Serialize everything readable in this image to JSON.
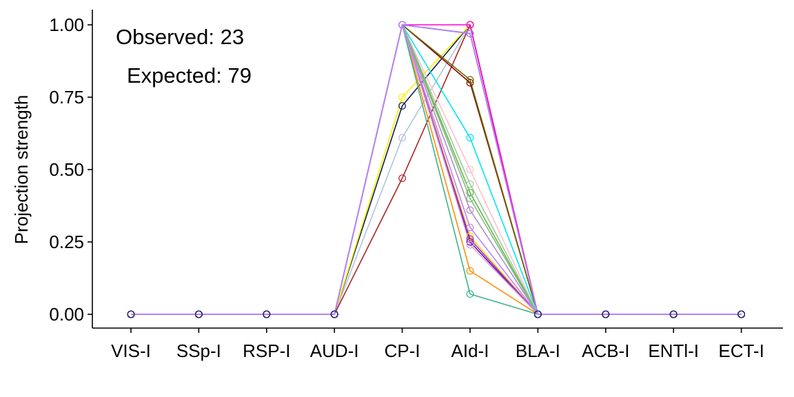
{
  "chart_data": {
    "type": "line",
    "title": "",
    "xlabel": "",
    "ylabel": "Projection strength",
    "ylim": [
      0,
      1
    ],
    "yticks": [
      "0.00",
      "0.25",
      "0.50",
      "0.75",
      "1.00"
    ],
    "categories": [
      "VIS-I",
      "SSp-I",
      "RSP-I",
      "AUD-I",
      "CP-I",
      "AId-I",
      "BLA-I",
      "ACB-I",
      "ENTl-I",
      "ECT-I"
    ],
    "grid": false,
    "legend": "none",
    "annotations": {
      "observed": "Observed: 23",
      "expected": "Expected: 79"
    },
    "series": [
      {
        "color": "#2b2b6f",
        "values": [
          0,
          0,
          0,
          0,
          1.0,
          0.97,
          0,
          0,
          0,
          0
        ]
      },
      {
        "color": "#4169e1",
        "values": [
          0,
          0,
          0,
          0,
          1.0,
          0.97,
          0,
          0,
          0,
          0
        ]
      },
      {
        "color": "#0b1f4f",
        "values": [
          0,
          0,
          0,
          0,
          0.72,
          1.0,
          0,
          0,
          0,
          0
        ]
      },
      {
        "color": "#ffee00",
        "values": [
          0,
          0,
          0,
          0,
          0.75,
          1.0,
          0,
          0,
          0,
          0
        ]
      },
      {
        "color": "#b0c4de",
        "values": [
          0,
          0,
          0,
          0,
          0.61,
          1.0,
          0,
          0,
          0,
          0
        ]
      },
      {
        "color": "#b22222",
        "values": [
          0,
          0,
          0,
          0,
          0.47,
          1.0,
          0,
          0,
          0,
          0
        ]
      },
      {
        "color": "#8b0000",
        "values": [
          0,
          0,
          0,
          0,
          1.0,
          0.8,
          0,
          0,
          0,
          0
        ]
      },
      {
        "color": "#6b6b00",
        "values": [
          0,
          0,
          0,
          0,
          1.0,
          0.81,
          0,
          0,
          0,
          0
        ]
      },
      {
        "color": "#ff00cc",
        "values": [
          0,
          0,
          0,
          0,
          1.0,
          1.0,
          0,
          0,
          0,
          0
        ]
      },
      {
        "color": "#00e5ee",
        "values": [
          0,
          0,
          0,
          0,
          1.0,
          0.61,
          0,
          0,
          0,
          0
        ]
      },
      {
        "color": "#ffc0cb",
        "values": [
          0,
          0,
          0,
          0,
          1.0,
          0.5,
          0,
          0,
          0,
          0
        ]
      },
      {
        "color": "#9bcd9b",
        "values": [
          0,
          0,
          0,
          0,
          1.0,
          0.45,
          0,
          0,
          0,
          0
        ]
      },
      {
        "color": "#6ab04c",
        "values": [
          0,
          0,
          0,
          0,
          1.0,
          0.42,
          0,
          0,
          0,
          0
        ]
      },
      {
        "color": "#b28dc9",
        "values": [
          0,
          0,
          0,
          0,
          1.0,
          0.36,
          0,
          0,
          0,
          0
        ]
      },
      {
        "color": "#ffd700",
        "values": [
          0,
          0,
          0,
          0,
          1.0,
          0.27,
          0,
          0,
          0,
          0
        ]
      },
      {
        "color": "#6a0dad",
        "values": [
          0,
          0,
          0,
          0,
          1.0,
          0.25,
          0,
          0,
          0,
          0
        ]
      },
      {
        "color": "#9932cc",
        "values": [
          0,
          0,
          0,
          0,
          1.0,
          0.26,
          0,
          0,
          0,
          0
        ]
      },
      {
        "color": "#ff8c00",
        "values": [
          0,
          0,
          0,
          0,
          1.0,
          0.15,
          0,
          0,
          0,
          0
        ]
      },
      {
        "color": "#3cb38a",
        "values": [
          0,
          0,
          0,
          0,
          1.0,
          0.07,
          0,
          0,
          0,
          0
        ]
      },
      {
        "color": "#d8a0d8",
        "values": [
          0,
          0,
          0,
          0,
          1.0,
          0.24,
          0,
          0,
          0,
          0
        ]
      },
      {
        "color": "#7fbf7f",
        "values": [
          0,
          0,
          0,
          0,
          1.0,
          0.4,
          0,
          0,
          0,
          0
        ]
      },
      {
        "color": "#c080ff",
        "values": [
          0,
          0,
          0,
          0,
          1.0,
          0.3,
          0,
          0,
          0,
          0
        ]
      },
      {
        "color": "#b77dff",
        "values": [
          0,
          0,
          0,
          0,
          1.0,
          0.97,
          0,
          0,
          0,
          0
        ]
      }
    ]
  }
}
